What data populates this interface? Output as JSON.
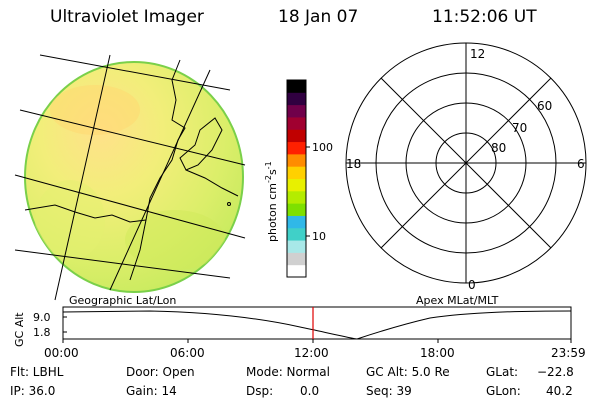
{
  "header": {
    "title": "Ultraviolet Imager",
    "date": "18 Jan 07",
    "time": "11:52:06 UT"
  },
  "colorbar": {
    "unit_label": "photon cm",
    "exp1": "-2",
    "unit_mid": "s",
    "exp2": "-1",
    "ticks": [
      "100",
      "10"
    ],
    "colors": [
      "#ffffff",
      "#d0d0d0",
      "#a8e8e8",
      "#40d0c8",
      "#30b8e8",
      "#7ee000",
      "#b4ec00",
      "#e8f000",
      "#ffd000",
      "#ff8c00",
      "#ff2000",
      "#c00000",
      "#a00030",
      "#70004a",
      "#300040",
      "#000000"
    ]
  },
  "polar": {
    "mlt_labels": {
      "top": "12",
      "left": "18",
      "right": "6",
      "bottom": "0"
    },
    "lat_labels": [
      "60",
      "70",
      "80"
    ]
  },
  "map": {
    "left_label": "Geographic Lat/Lon",
    "right_label": "Apex MLat/MLT"
  },
  "timeline": {
    "ylabel": "GC Alt",
    "ymax": "9.0",
    "ymin": "1.8",
    "ticks": [
      "00:00",
      "06:00",
      "12:00",
      "18:00",
      "23:59"
    ]
  },
  "status": {
    "filter": "Flt:  LBHL",
    "ip": "IP:  36.0",
    "door": "Door:  Open",
    "gain": "Gain:  14",
    "mode": "Mode:  Normal",
    "dsp": "Dsp:",
    "dsp_value": "0.0",
    "gc_alt": "GC Alt:  5.0 Re",
    "seq": "Seq:  39",
    "glat_label": "GLat:",
    "glat_value": "−22.8",
    "glon_label": "GLon:",
    "glon_value": "40.2"
  }
}
